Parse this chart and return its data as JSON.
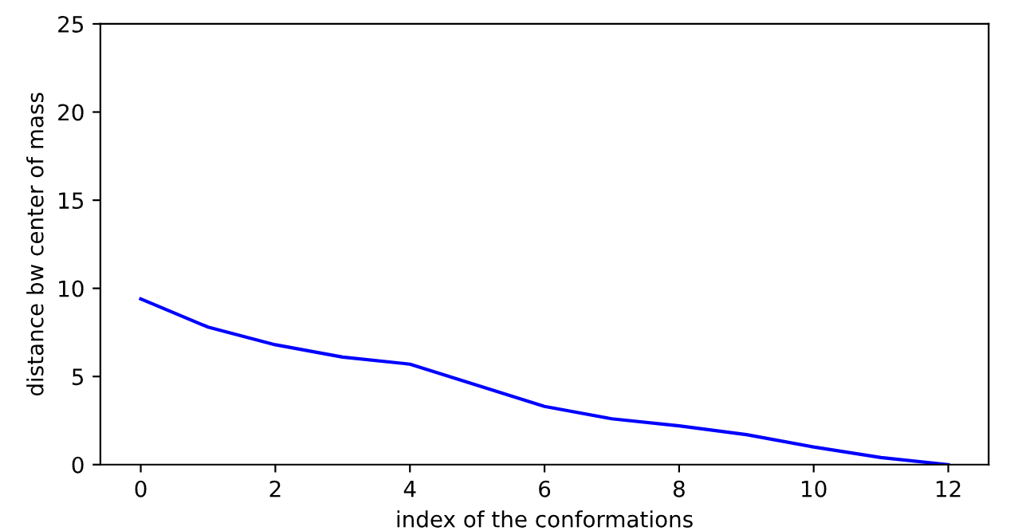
{
  "chart_data": {
    "type": "line",
    "xlabel": "index of the conformations",
    "ylabel": "distance bw center of mass",
    "x": [
      0,
      1,
      2,
      3,
      4,
      5,
      6,
      7,
      8,
      9,
      10,
      11,
      12
    ],
    "series": [
      {
        "color": "#0000ff",
        "values": [
          9.4,
          7.8,
          6.8,
          6.1,
          5.7,
          4.5,
          3.3,
          2.6,
          2.2,
          1.7,
          1.0,
          0.4,
          0.0
        ]
      }
    ],
    "xlim": [
      -0.6,
      12.6
    ],
    "ylim": [
      0,
      25
    ],
    "xticks": [
      0,
      2,
      4,
      6,
      8,
      10,
      12
    ],
    "yticks": [
      0,
      5,
      10,
      15,
      20,
      25
    ],
    "grid": false
  }
}
